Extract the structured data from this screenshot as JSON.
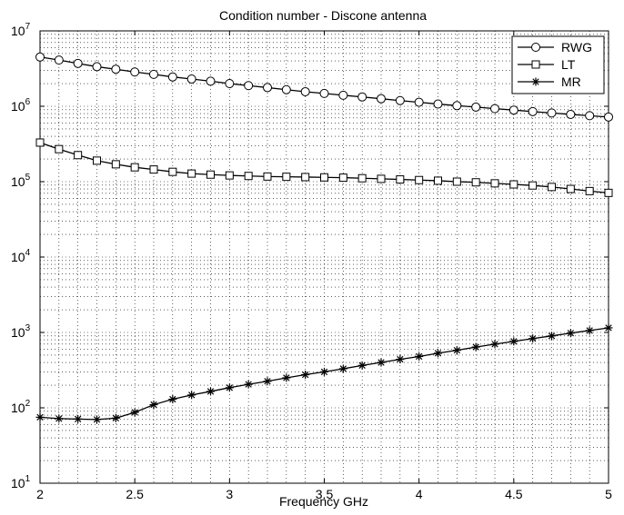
{
  "chart_data": {
    "type": "line",
    "title": "Condition number - Discone antenna",
    "xlabel": "Frequency GHz",
    "ylabel": "",
    "xlim": [
      2,
      5
    ],
    "ylim": [
      10,
      10000000
    ],
    "yscale": "log",
    "grid": true,
    "legend_position": "top-right",
    "x_ticks": [
      "2",
      "2.5",
      "3",
      "3.5",
      "4",
      "4.5",
      "5"
    ],
    "y_ticks": [
      {
        "base": "10",
        "exp": "1"
      },
      {
        "base": "10",
        "exp": "2"
      },
      {
        "base": "10",
        "exp": "3"
      },
      {
        "base": "10",
        "exp": "4"
      },
      {
        "base": "10",
        "exp": "5"
      },
      {
        "base": "10",
        "exp": "6"
      },
      {
        "base": "10",
        "exp": "7"
      }
    ],
    "x": [
      2.0,
      2.1,
      2.2,
      2.3,
      2.4,
      2.5,
      2.6,
      2.7,
      2.8,
      2.9,
      3.0,
      3.1,
      3.2,
      3.3,
      3.4,
      3.5,
      3.6,
      3.7,
      3.8,
      3.9,
      4.0,
      4.1,
      4.2,
      4.3,
      4.4,
      4.5,
      4.6,
      4.7,
      4.8,
      4.9,
      5.0
    ],
    "series": [
      {
        "name": "RWG",
        "marker": "circle",
        "values": [
          4500000,
          4100000,
          3700000,
          3350000,
          3100000,
          2850000,
          2650000,
          2450000,
          2300000,
          2150000,
          2000000,
          1880000,
          1770000,
          1660000,
          1560000,
          1480000,
          1400000,
          1330000,
          1260000,
          1190000,
          1130000,
          1070000,
          1020000,
          975000,
          930000,
          890000,
          850000,
          815000,
          780000,
          750000,
          720000
        ]
      },
      {
        "name": "LT",
        "marker": "square",
        "values": [
          330000,
          270000,
          225000,
          190000,
          170000,
          155000,
          145000,
          135000,
          128000,
          124000,
          121000,
          119000,
          117000,
          116000,
          115000,
          114000,
          113000,
          111000,
          109000,
          107000,
          105000,
          103000,
          100000,
          98000,
          95000,
          92000,
          89000,
          85000,
          80000,
          75000,
          71000
        ]
      },
      {
        "name": "MR",
        "marker": "star",
        "values": [
          75,
          72,
          71,
          70,
          73,
          87,
          110,
          130,
          148,
          165,
          185,
          205,
          225,
          250,
          275,
          300,
          330,
          365,
          400,
          440,
          480,
          530,
          580,
          640,
          700,
          760,
          830,
          900,
          980,
          1060,
          1150
        ]
      }
    ]
  }
}
